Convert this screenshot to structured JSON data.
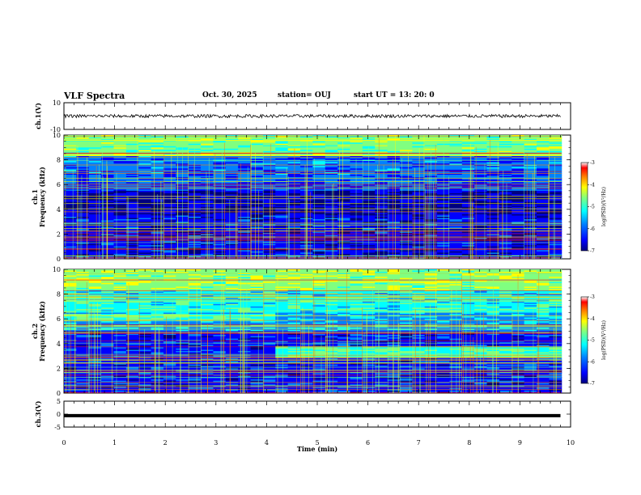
{
  "header": {
    "title": "VLF Spectra",
    "date": "Oct. 30, 2025",
    "station": "station= OUJ",
    "start_ut": "start  UT =   13: 20: 0"
  },
  "chart_data": [
    {
      "type": "line",
      "name": "ch1-waveform",
      "ylabel": "ch.1(V)",
      "ylim": [
        -10,
        10
      ],
      "yticks": [
        "10",
        "-10"
      ],
      "xlim": [
        0,
        10
      ],
      "x": [
        0,
        2,
        4,
        6,
        8,
        9.8
      ],
      "y": [
        0,
        0,
        0,
        0,
        0,
        0
      ]
    },
    {
      "type": "heatmap",
      "name": "ch1-spectrogram",
      "ylabel": "ch.1\nFrequency  (kHz)",
      "ylim": [
        0,
        10
      ],
      "yticks": [
        "0",
        "2",
        "4",
        "6",
        "8",
        "10"
      ],
      "xlim": [
        0,
        10
      ],
      "colorbar": {
        "label": "log(PSD)(V²/Hz)",
        "ticks": [
          "-3",
          "-4",
          "-5",
          "-6",
          "-7"
        ],
        "range": [
          -7,
          -3
        ]
      }
    },
    {
      "type": "heatmap",
      "name": "ch2-spectrogram",
      "ylabel": "ch.2\nFrequency  (kHz)",
      "ylim": [
        0,
        10
      ],
      "yticks": [
        "0",
        "2",
        "4",
        "6",
        "8",
        "10"
      ],
      "xlim": [
        0,
        10
      ],
      "colorbar": {
        "label": "log(PSD)(V²/Hz)",
        "ticks": [
          "-3",
          "-4",
          "-5",
          "-6",
          "-7"
        ],
        "range": [
          -7,
          -3
        ]
      }
    },
    {
      "type": "line",
      "name": "ch3-waveform",
      "ylabel": "ch.3(V)",
      "ylim": [
        -5,
        5
      ],
      "yticks": [
        "5",
        "0",
        "-5"
      ],
      "xlim": [
        0,
        10
      ],
      "x": [
        0,
        2,
        4,
        6,
        8,
        9.8
      ],
      "y": [
        -0.6,
        -0.6,
        -0.6,
        -0.6,
        -0.6,
        -0.6
      ]
    }
  ],
  "xaxis": {
    "label": "Time  (min)",
    "ticks": [
      "0",
      "1",
      "2",
      "3",
      "4",
      "5",
      "6",
      "7",
      "8",
      "9",
      "10"
    ]
  },
  "colors": {
    "scale": [
      "#00007f",
      "#0000ff",
      "#0080ff",
      "#00ffff",
      "#80ff80",
      "#ffff00",
      "#ff8000",
      "#ff0000",
      "#ffffff"
    ]
  }
}
